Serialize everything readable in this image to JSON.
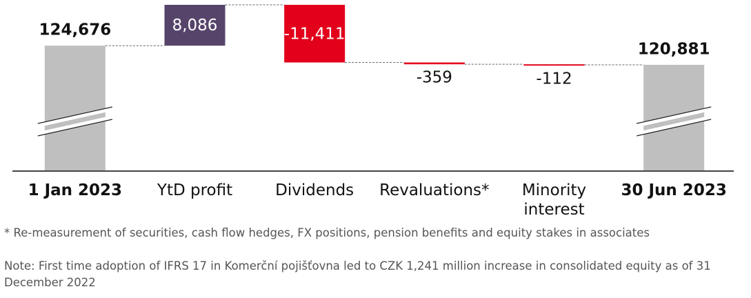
{
  "chart_data": {
    "type": "waterfall",
    "categories": [
      "1 Jan 2023",
      "YtD profit",
      "Dividends",
      "Revaluations*",
      "Minority interest",
      "30 Jun 2023"
    ],
    "values": [
      124676,
      8086,
      -11411,
      -359,
      -112,
      120881
    ],
    "value_labels": [
      "124,676",
      "8,086",
      "-11,411",
      "-359",
      "-112",
      "120,881"
    ],
    "total_color": "#bfbfbf",
    "increase_color": "#56446b",
    "decrease_color": "#e2001a",
    "notes": [
      "* Re-measurement of securities, cash flow hedges, FX positions, pension benefits and equity stakes in associates",
      "Note: First time adoption of IFRS 17 in Komerční pojišťovna led to CZK 1,241 million increase in consolidated equity as of 31 December 2022"
    ]
  }
}
